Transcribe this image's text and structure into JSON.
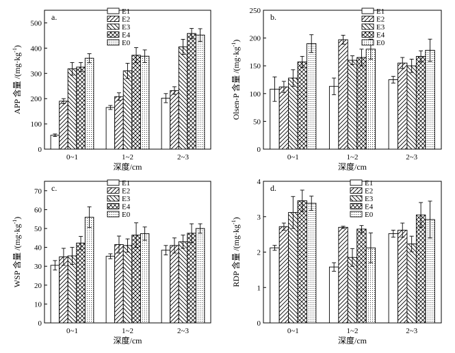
{
  "figure": {
    "colors": {
      "ink": "#000000",
      "background": "#ffffff"
    }
  },
  "legend": [
    {
      "key": "E1",
      "pattern": "solid"
    },
    {
      "key": "E2",
      "pattern": "hatch-fwd"
    },
    {
      "key": "E3",
      "pattern": "hatch-bwd"
    },
    {
      "key": "E4",
      "pattern": "crosshatch"
    },
    {
      "key": "E0",
      "pattern": "dots"
    }
  ],
  "chart_data": [
    {
      "panel": "a.",
      "type": "bar",
      "xlabel": "深度/cm",
      "ylabel_main": "APP 含量 /(mg·kg",
      "ylabel_sup": "-1",
      "ylabel_tail": ")",
      "ylim": [
        0,
        550
      ],
      "yticks": [
        0,
        100,
        200,
        300,
        400,
        500
      ],
      "yticks_label": [
        "0",
        "100",
        "200",
        "300",
        "400",
        "500"
      ],
      "categories": [
        "0~1",
        "1~2",
        "2~3"
      ],
      "series": [
        {
          "name": "E1",
          "values": [
            55,
            165,
            202
          ],
          "errors": [
            5,
            8,
            18
          ]
        },
        {
          "name": "E2",
          "values": [
            190,
            208,
            232
          ],
          "errors": [
            10,
            15,
            15
          ]
        },
        {
          "name": "E3",
          "values": [
            318,
            310,
            405
          ],
          "errors": [
            25,
            30,
            30
          ]
        },
        {
          "name": "E4",
          "values": [
            325,
            372,
            458
          ],
          "errors": [
            18,
            30,
            20
          ]
        },
        {
          "name": "E0",
          "values": [
            360,
            368,
            452
          ],
          "errors": [
            18,
            25,
            25
          ]
        }
      ]
    },
    {
      "panel": "b.",
      "type": "bar",
      "xlabel": "深度/cm",
      "ylabel_main": "Olsen-P 含量 /(mg·kg",
      "ylabel_sup": "-1",
      "ylabel_tail": ")",
      "ylim": [
        0,
        250
      ],
      "yticks": [
        0,
        50,
        100,
        150,
        200,
        250
      ],
      "yticks_label": [
        "0",
        "50",
        "100",
        "150",
        "200",
        "250"
      ],
      "categories": [
        "0~1",
        "1~2",
        "2~3"
      ],
      "series": [
        {
          "name": "E1",
          "values": [
            108,
            113,
            125
          ],
          "errors": [
            22,
            15,
            6
          ]
        },
        {
          "name": "E2",
          "values": [
            112,
            197,
            155
          ],
          "errors": [
            10,
            8,
            10
          ]
        },
        {
          "name": "E3",
          "values": [
            128,
            160,
            150
          ],
          "errors": [
            15,
            8,
            12
          ]
        },
        {
          "name": "E4",
          "values": [
            157,
            165,
            167
          ],
          "errors": [
            10,
            15,
            10
          ]
        },
        {
          "name": "E0",
          "values": [
            190,
            180,
            178
          ],
          "errors": [
            16,
            18,
            20
          ]
        }
      ]
    },
    {
      "panel": "c.",
      "type": "bar",
      "xlabel": "深度/cm",
      "ylabel_main": "WSP 含量 /(mg·kg",
      "ylabel_sup": "-1",
      "ylabel_tail": ")",
      "ylim": [
        0,
        75
      ],
      "yticks": [
        0,
        10,
        20,
        30,
        40,
        50,
        60,
        70
      ],
      "yticks_label": [
        "0",
        "10",
        "20",
        "30",
        "40",
        "50",
        "60",
        "70"
      ],
      "categories": [
        "0~1",
        "1~2",
        "2~3"
      ],
      "series": [
        {
          "name": "E1",
          "values": [
            30.5,
            35.3,
            38.5
          ],
          "errors": [
            2.5,
            1.3,
            2.5
          ]
        },
        {
          "name": "E2",
          "values": [
            35,
            41.5,
            41
          ],
          "errors": [
            4.5,
            4.5,
            4
          ]
        },
        {
          "name": "E3",
          "values": [
            35.5,
            41,
            43
          ],
          "errors": [
            4.5,
            3.5,
            3.5
          ]
        },
        {
          "name": "E4",
          "values": [
            42.3,
            46.5,
            47.5
          ],
          "errors": [
            3.5,
            6.5,
            5
          ]
        },
        {
          "name": "E0",
          "values": [
            56,
            47.3,
            50
          ],
          "errors": [
            5.5,
            3.5,
            2.5
          ]
        }
      ]
    },
    {
      "panel": "d.",
      "type": "bar",
      "xlabel": "深度/cm",
      "ylabel_main": "RDP 含量 /(mg·kg",
      "ylabel_sup": "-1",
      "ylabel_tail": ")",
      "ylim": [
        0,
        4
      ],
      "yticks": [
        0,
        1,
        2,
        3,
        4
      ],
      "yticks_label": [
        "0",
        "1",
        "2",
        "3",
        "4"
      ],
      "categories": [
        "0~1",
        "1~2",
        "2~3"
      ],
      "series": [
        {
          "name": "E1",
          "values": [
            2.12,
            1.58,
            2.52
          ],
          "errors": [
            0.07,
            0.12,
            0.1
          ]
        },
        {
          "name": "E2",
          "values": [
            2.72,
            2.7,
            2.62
          ],
          "errors": [
            0.1,
            0.03,
            0.2
          ]
        },
        {
          "name": "E3",
          "values": [
            3.12,
            1.85,
            2.23
          ],
          "errors": [
            0.45,
            0.25,
            0.22
          ]
        },
        {
          "name": "E4",
          "values": [
            3.45,
            2.65,
            3.05
          ],
          "errors": [
            0.3,
            0.1,
            0.35
          ]
        },
        {
          "name": "E0",
          "values": [
            3.38,
            2.12,
            2.92
          ],
          "errors": [
            0.2,
            0.42,
            0.52
          ]
        }
      ]
    }
  ]
}
